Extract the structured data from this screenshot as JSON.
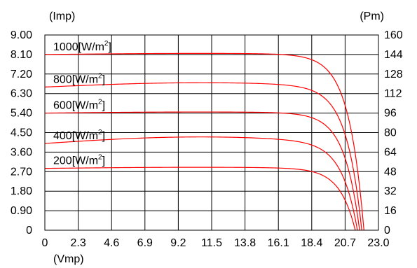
{
  "chart_data": {
    "type": "line",
    "left_axis_unit": "(Imp)",
    "right_axis_unit": "(Pm)",
    "x_axis_unit": "(Vmp)",
    "xlim": [
      0,
      23.0
    ],
    "ylim": [
      0,
      9.0
    ],
    "y2lim": [
      0,
      160
    ],
    "x_ticks": [
      "0",
      "2.3",
      "4.6",
      "6.9",
      "9.2",
      "11.5",
      "13.8",
      "16.1",
      "18.4",
      "20.7",
      "23.0"
    ],
    "y_ticks": [
      "0",
      "0.90",
      "1.80",
      "2.70",
      "3.60",
      "4.50",
      "5.40",
      "6.30",
      "7.20",
      "8.10",
      "9.00"
    ],
    "y2_ticks": [
      "0",
      "16",
      "32",
      "48",
      "64",
      "80",
      "96",
      "112",
      "128",
      "144",
      "160"
    ],
    "grid": true,
    "line_color": "#ff0000",
    "series": [
      {
        "name": "1000[W/m²]",
        "label_main": "1000[W/m",
        "label_sup": "2",
        "label_end": "]",
        "isc": 8.1,
        "ipeak": 8.15,
        "voc": 22.0
      },
      {
        "name": "800[W/m²]",
        "label_main": "800[W/m",
        "label_sup": "2",
        "label_end": "]",
        "isc": 6.6,
        "ipeak": 6.8,
        "voc": 21.85
      },
      {
        "name": "600[W/m²]",
        "label_main": "600[W/m",
        "label_sup": "2",
        "label_end": "]",
        "isc": 5.4,
        "ipeak": 5.45,
        "voc": 21.7
      },
      {
        "name": "400[W/m²]",
        "label_main": "400[W/m",
        "label_sup": "2",
        "label_end": "]",
        "isc": 4.0,
        "ipeak": 4.3,
        "voc": 21.55
      },
      {
        "name": "200[W/m²]",
        "label_main": "200[W/m",
        "label_sup": "2",
        "label_end": "]",
        "isc": 2.85,
        "ipeak": 2.9,
        "voc": 21.4
      }
    ]
  }
}
